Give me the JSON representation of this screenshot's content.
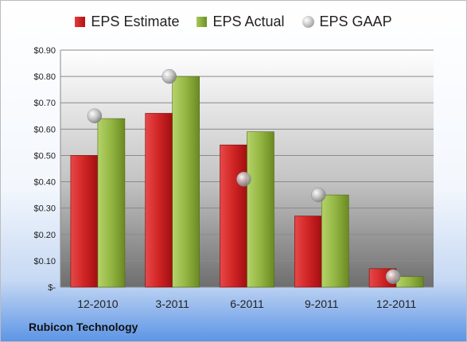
{
  "company": "Rubicon Technology",
  "colors": {
    "estimate": "#c8202a",
    "actual": "#8bac3c",
    "gaap": "#b5b5b5"
  },
  "chart_data": {
    "type": "bar",
    "categories": [
      "12-2010",
      "3-2011",
      "6-2011",
      "9-2011",
      "12-2011"
    ],
    "series": [
      {
        "name": "EPS Estimate",
        "values": [
          0.5,
          0.66,
          0.54,
          0.27,
          0.07
        ]
      },
      {
        "name": "EPS Actual",
        "values": [
          0.64,
          0.8,
          0.59,
          0.35,
          0.04
        ]
      },
      {
        "name": "EPS GAAP",
        "values": [
          0.65,
          0.8,
          0.41,
          0.35,
          0.04
        ]
      }
    ],
    "ylim": [
      0,
      0.9
    ],
    "yticks": [
      0,
      0.1,
      0.2,
      0.3,
      0.4,
      0.5,
      0.6,
      0.7,
      0.8,
      0.9
    ],
    "ytick_labels": [
      "$-",
      "$0.10",
      "$0.20",
      "$0.30",
      "$0.40",
      "$0.50",
      "$0.60",
      "$0.70",
      "$0.80",
      "$0.90"
    ],
    "legend_position": "top",
    "grid": true
  }
}
